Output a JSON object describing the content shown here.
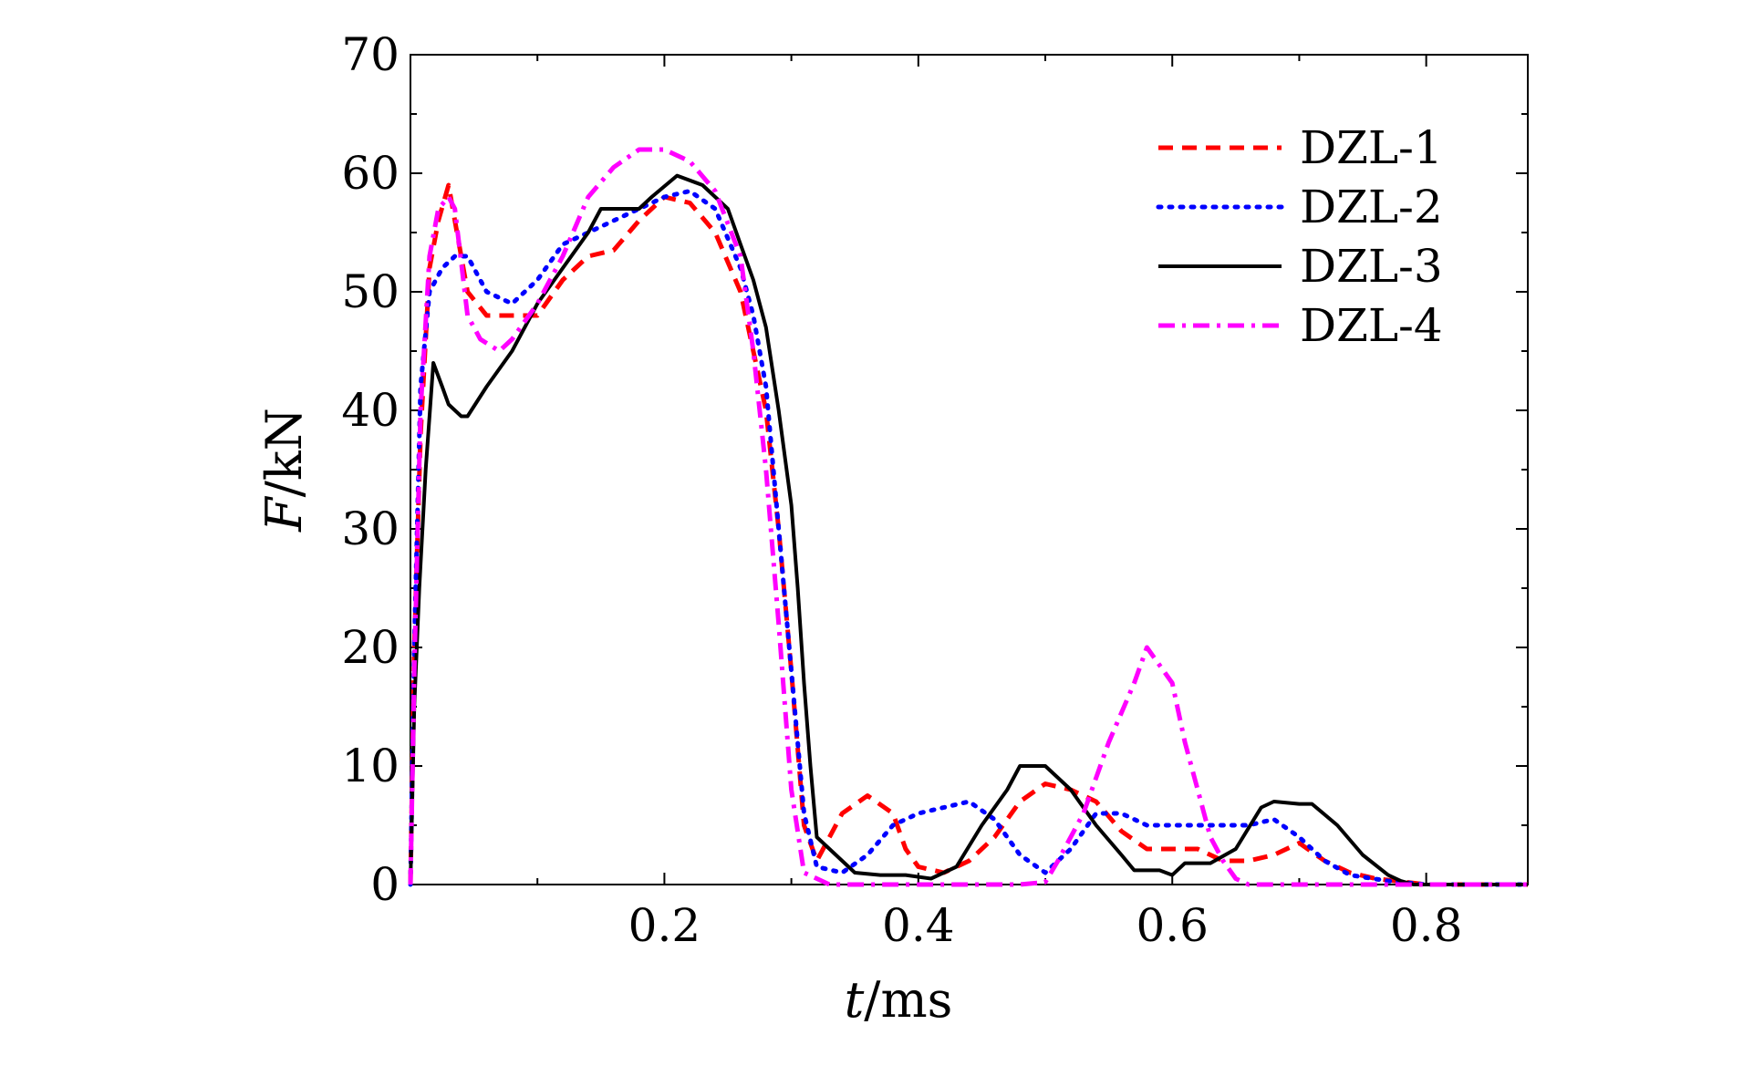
{
  "chart_data": {
    "type": "line",
    "title": "",
    "xlabel": {
      "italic": "t",
      "rest": "/ms"
    },
    "ylabel": {
      "italic": "F",
      "rest": "/kN"
    },
    "xlim": [
      0,
      0.88
    ],
    "ylim": [
      0,
      70
    ],
    "xticks": [
      0.2,
      0.4,
      0.6,
      0.8
    ],
    "xtick_labels": [
      "0.2",
      "0.4",
      "0.6",
      "0.8"
    ],
    "yticks": [
      0,
      10,
      20,
      30,
      40,
      50,
      60,
      70
    ],
    "ytick_labels": [
      "0",
      "10",
      "20",
      "30",
      "40",
      "50",
      "60",
      "70"
    ],
    "grid": false,
    "legend_position": "top-right",
    "series": [
      {
        "name": "DZL-1",
        "color": "#ff0000",
        "style": "dashed",
        "points": [
          [
            0,
            0
          ],
          [
            0.003,
            20
          ],
          [
            0.008,
            38
          ],
          [
            0.015,
            52
          ],
          [
            0.022,
            56
          ],
          [
            0.03,
            59
          ],
          [
            0.035,
            56
          ],
          [
            0.045,
            50
          ],
          [
            0.06,
            48
          ],
          [
            0.08,
            48
          ],
          [
            0.1,
            48
          ],
          [
            0.12,
            51
          ],
          [
            0.14,
            53
          ],
          [
            0.16,
            53.5
          ],
          [
            0.18,
            56
          ],
          [
            0.2,
            58
          ],
          [
            0.22,
            57.5
          ],
          [
            0.24,
            55
          ],
          [
            0.26,
            50
          ],
          [
            0.27,
            45
          ],
          [
            0.28,
            40
          ],
          [
            0.29,
            30
          ],
          [
            0.3,
            18
          ],
          [
            0.31,
            5
          ],
          [
            0.32,
            2
          ],
          [
            0.34,
            6
          ],
          [
            0.36,
            7.5
          ],
          [
            0.38,
            6
          ],
          [
            0.39,
            3
          ],
          [
            0.4,
            1.5
          ],
          [
            0.42,
            1
          ],
          [
            0.44,
            2
          ],
          [
            0.46,
            4
          ],
          [
            0.48,
            7
          ],
          [
            0.5,
            8.5
          ],
          [
            0.52,
            8
          ],
          [
            0.54,
            7
          ],
          [
            0.56,
            4.5
          ],
          [
            0.58,
            3
          ],
          [
            0.6,
            3
          ],
          [
            0.62,
            3
          ],
          [
            0.64,
            2
          ],
          [
            0.66,
            2
          ],
          [
            0.68,
            2.5
          ],
          [
            0.7,
            3.5
          ],
          [
            0.72,
            2
          ],
          [
            0.74,
            1
          ],
          [
            0.76,
            0.5
          ],
          [
            0.8,
            0
          ],
          [
            0.88,
            0
          ]
        ]
      },
      {
        "name": "DZL-2",
        "color": "#0000ff",
        "style": "dotted",
        "points": [
          [
            0,
            0
          ],
          [
            0.003,
            20
          ],
          [
            0.008,
            42
          ],
          [
            0.015,
            50
          ],
          [
            0.025,
            52
          ],
          [
            0.035,
            53
          ],
          [
            0.045,
            53
          ],
          [
            0.06,
            50
          ],
          [
            0.08,
            49
          ],
          [
            0.1,
            51
          ],
          [
            0.12,
            54
          ],
          [
            0.14,
            55
          ],
          [
            0.16,
            56
          ],
          [
            0.18,
            57
          ],
          [
            0.2,
            58
          ],
          [
            0.22,
            58.5
          ],
          [
            0.24,
            57
          ],
          [
            0.26,
            52
          ],
          [
            0.27,
            48
          ],
          [
            0.28,
            42
          ],
          [
            0.29,
            30
          ],
          [
            0.3,
            18
          ],
          [
            0.31,
            6
          ],
          [
            0.32,
            1.5
          ],
          [
            0.34,
            1
          ],
          [
            0.36,
            2.5
          ],
          [
            0.38,
            5
          ],
          [
            0.4,
            6
          ],
          [
            0.42,
            6.5
          ],
          [
            0.44,
            7
          ],
          [
            0.46,
            5.5
          ],
          [
            0.48,
            2.5
          ],
          [
            0.5,
            1
          ],
          [
            0.52,
            3
          ],
          [
            0.54,
            6
          ],
          [
            0.56,
            6
          ],
          [
            0.58,
            5
          ],
          [
            0.6,
            5
          ],
          [
            0.62,
            5
          ],
          [
            0.64,
            5
          ],
          [
            0.66,
            5
          ],
          [
            0.68,
            5.5
          ],
          [
            0.7,
            4
          ],
          [
            0.72,
            2
          ],
          [
            0.74,
            0.8
          ],
          [
            0.77,
            0.3
          ],
          [
            0.8,
            0
          ],
          [
            0.88,
            0
          ]
        ]
      },
      {
        "name": "DZL-3",
        "color": "#000000",
        "style": "solid",
        "points": [
          [
            0,
            0
          ],
          [
            0.003,
            15
          ],
          [
            0.007,
            25
          ],
          [
            0.012,
            35
          ],
          [
            0.018,
            44
          ],
          [
            0.025,
            42
          ],
          [
            0.03,
            40.5
          ],
          [
            0.04,
            39.5
          ],
          [
            0.045,
            39.5
          ],
          [
            0.06,
            42
          ],
          [
            0.08,
            45
          ],
          [
            0.1,
            49
          ],
          [
            0.12,
            52
          ],
          [
            0.14,
            55
          ],
          [
            0.15,
            57
          ],
          [
            0.17,
            57
          ],
          [
            0.18,
            57
          ],
          [
            0.19,
            58
          ],
          [
            0.21,
            59.8
          ],
          [
            0.23,
            59
          ],
          [
            0.25,
            57
          ],
          [
            0.26,
            54
          ],
          [
            0.27,
            51
          ],
          [
            0.28,
            47
          ],
          [
            0.29,
            40
          ],
          [
            0.3,
            32
          ],
          [
            0.305,
            25
          ],
          [
            0.31,
            17
          ],
          [
            0.315,
            10
          ],
          [
            0.32,
            4
          ],
          [
            0.33,
            3
          ],
          [
            0.34,
            2
          ],
          [
            0.35,
            1
          ],
          [
            0.37,
            0.8
          ],
          [
            0.39,
            0.8
          ],
          [
            0.41,
            0.5
          ],
          [
            0.43,
            1.5
          ],
          [
            0.45,
            5
          ],
          [
            0.47,
            8
          ],
          [
            0.48,
            10
          ],
          [
            0.5,
            10
          ],
          [
            0.52,
            8
          ],
          [
            0.54,
            5
          ],
          [
            0.56,
            2.5
          ],
          [
            0.57,
            1.2
          ],
          [
            0.59,
            1.2
          ],
          [
            0.6,
            0.8
          ],
          [
            0.61,
            1.8
          ],
          [
            0.63,
            1.8
          ],
          [
            0.65,
            3
          ],
          [
            0.67,
            6.5
          ],
          [
            0.68,
            7
          ],
          [
            0.7,
            6.8
          ],
          [
            0.71,
            6.8
          ],
          [
            0.73,
            5
          ],
          [
            0.75,
            2.5
          ],
          [
            0.77,
            0.8
          ],
          [
            0.78,
            0.3
          ],
          [
            0.79,
            0
          ],
          [
            0.88,
            0
          ]
        ]
      },
      {
        "name": "DZL-4",
        "color": "#ff00ff",
        "style": "dashdot",
        "points": [
          [
            0,
            0
          ],
          [
            0.003,
            18
          ],
          [
            0.008,
            40
          ],
          [
            0.015,
            53
          ],
          [
            0.022,
            57
          ],
          [
            0.03,
            58
          ],
          [
            0.035,
            57
          ],
          [
            0.045,
            48
          ],
          [
            0.055,
            46
          ],
          [
            0.07,
            45
          ],
          [
            0.08,
            46
          ],
          [
            0.1,
            49
          ],
          [
            0.12,
            53
          ],
          [
            0.14,
            58
          ],
          [
            0.16,
            60.5
          ],
          [
            0.18,
            62
          ],
          [
            0.2,
            62
          ],
          [
            0.22,
            61
          ],
          [
            0.24,
            58.5
          ],
          [
            0.26,
            53
          ],
          [
            0.27,
            45
          ],
          [
            0.28,
            35
          ],
          [
            0.29,
            22
          ],
          [
            0.3,
            8
          ],
          [
            0.31,
            1
          ],
          [
            0.33,
            0
          ],
          [
            0.48,
            0
          ],
          [
            0.5,
            0.2
          ],
          [
            0.51,
            2
          ],
          [
            0.53,
            6
          ],
          [
            0.55,
            12
          ],
          [
            0.57,
            17
          ],
          [
            0.58,
            20
          ],
          [
            0.6,
            17
          ],
          [
            0.61,
            12
          ],
          [
            0.62,
            8
          ],
          [
            0.63,
            4
          ],
          [
            0.64,
            2
          ],
          [
            0.65,
            0.5
          ],
          [
            0.66,
            0
          ],
          [
            0.88,
            0
          ]
        ]
      }
    ]
  }
}
